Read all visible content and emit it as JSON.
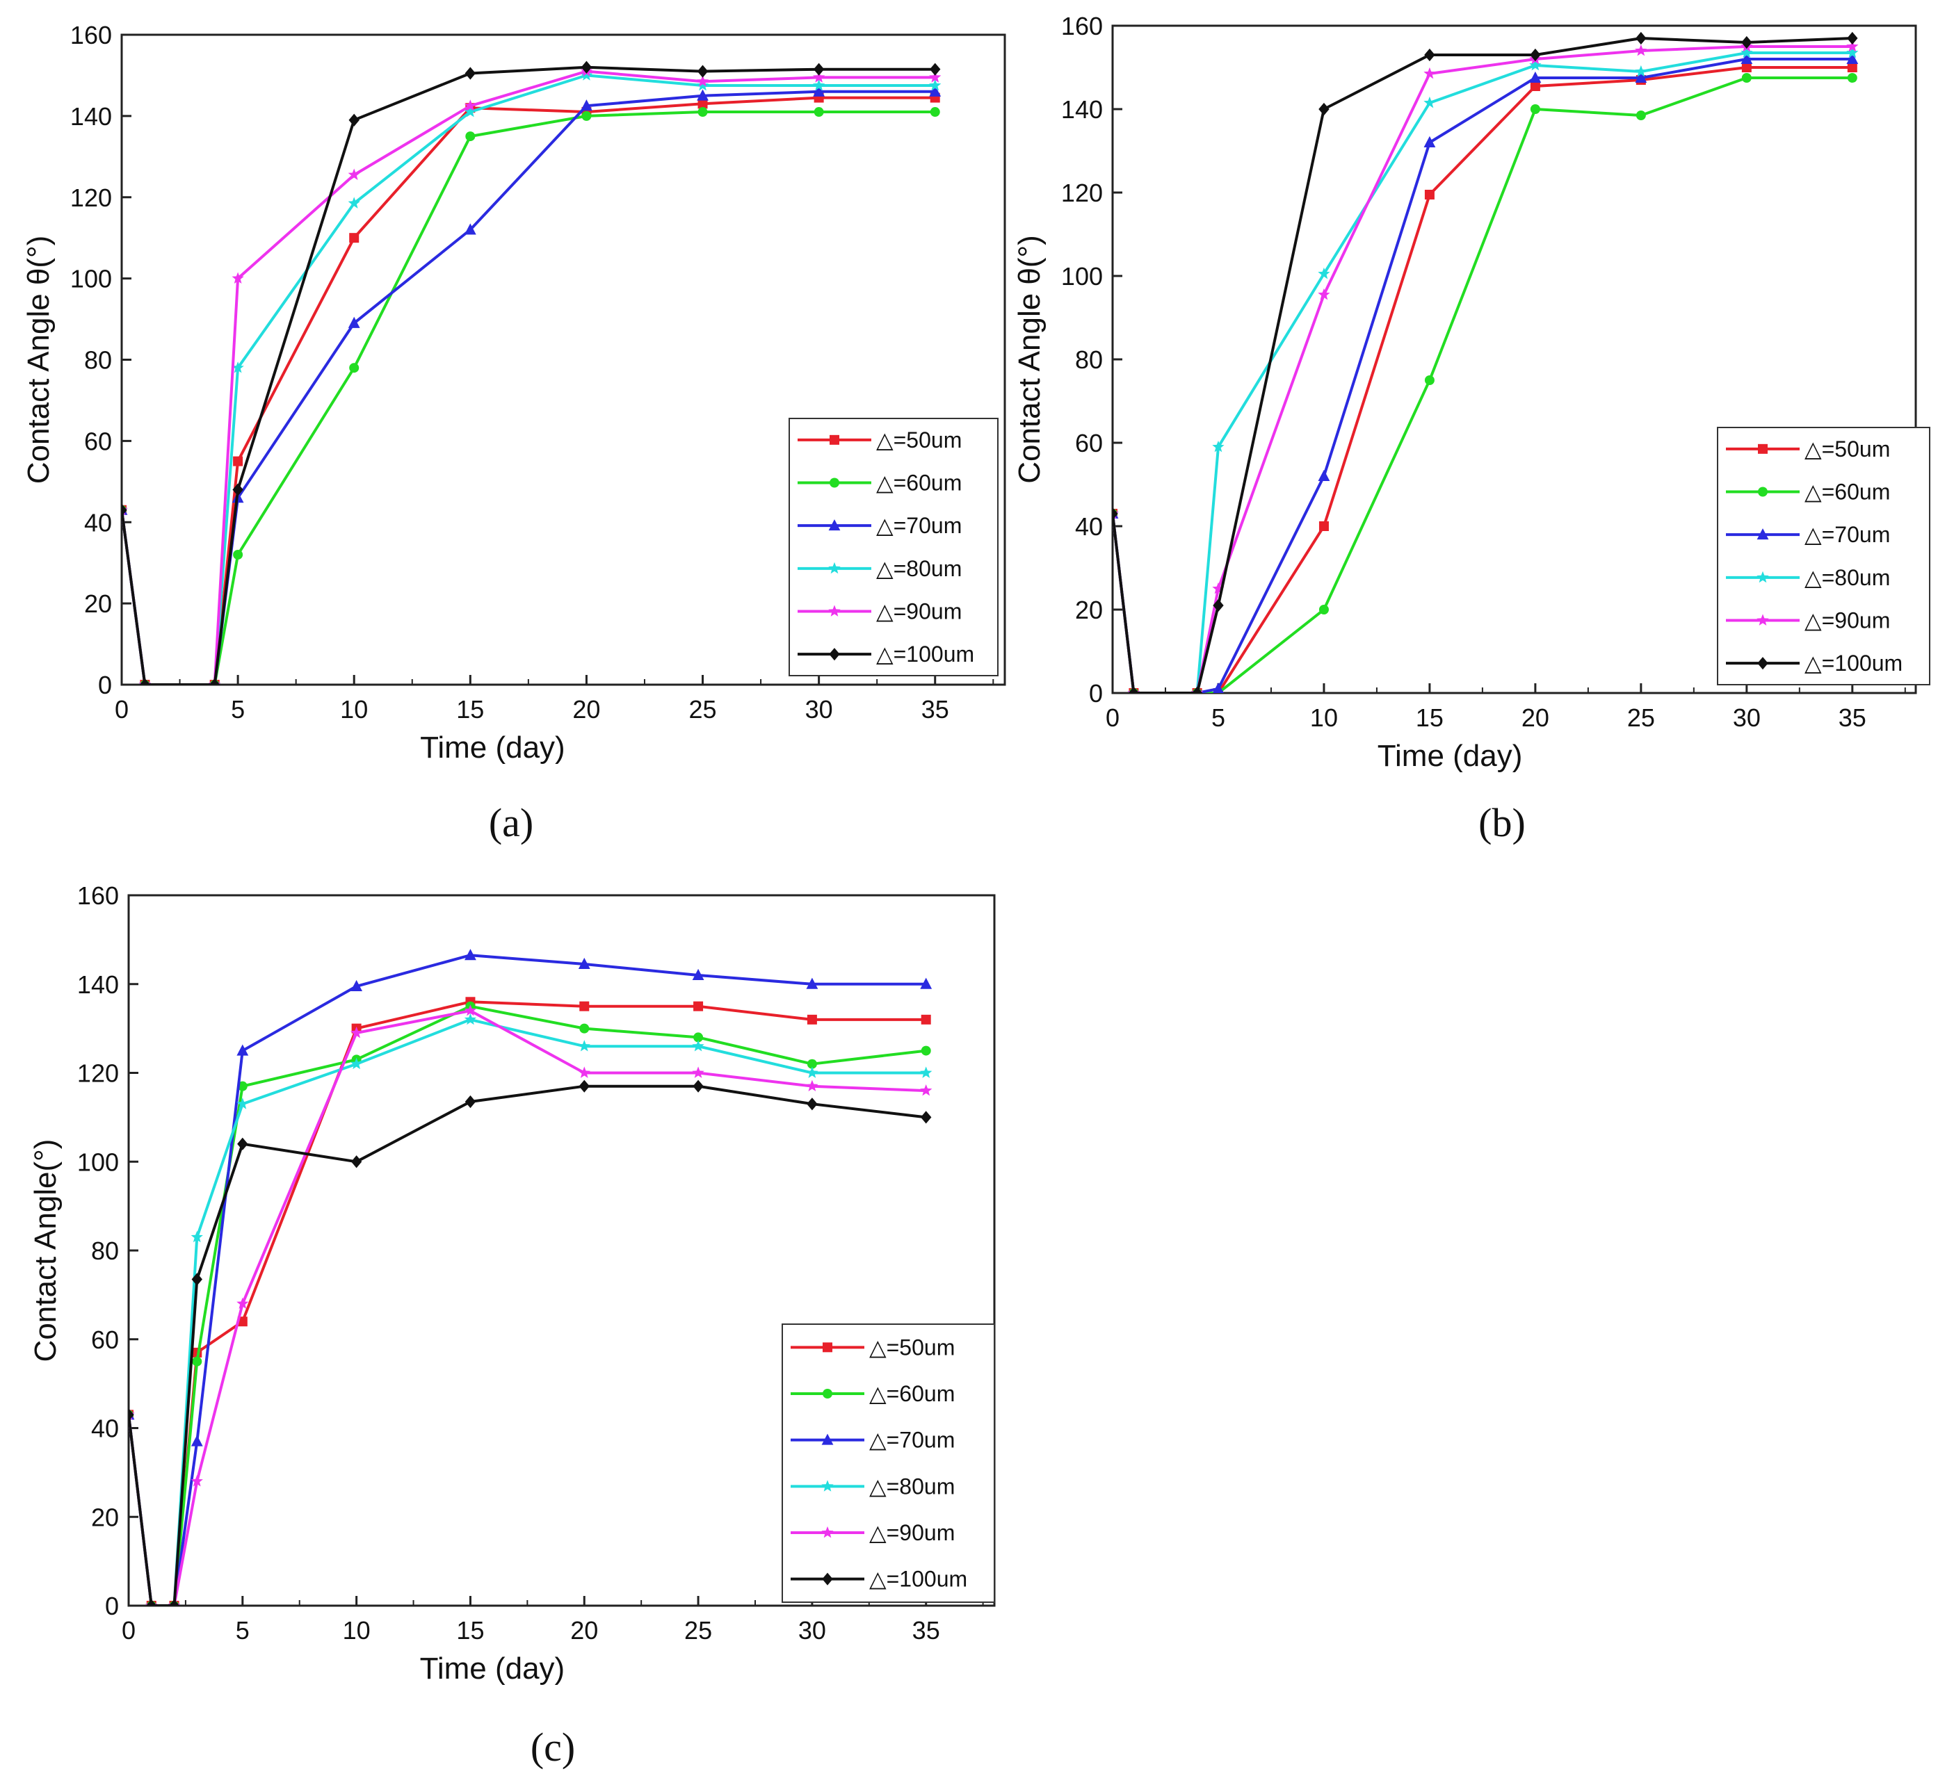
{
  "chart_data": [
    {
      "type": "line",
      "panel": "a",
      "caption": "(a)",
      "xlabel": "Time (day)",
      "ylabel": "Contact Angle θ(°)",
      "xlim": [
        0,
        38
      ],
      "ylim": [
        0,
        160
      ],
      "xticks": [
        0,
        5,
        10,
        15,
        20,
        25,
        30,
        35
      ],
      "yticks": [
        0,
        20,
        40,
        60,
        80,
        100,
        120,
        140,
        160
      ],
      "legend_position": "bottom-right",
      "series": [
        {
          "name": "△=50um",
          "color": "#e8202a",
          "marker": "square",
          "x": [
            0,
            1,
            4,
            5,
            10,
            15,
            20,
            25,
            30,
            35
          ],
          "y": [
            43,
            0,
            0,
            55,
            110,
            142,
            141,
            143,
            144.5,
            144.5
          ]
        },
        {
          "name": "△=60um",
          "color": "#22dd22",
          "marker": "circle",
          "x": [
            0,
            1,
            4,
            5,
            10,
            15,
            20,
            25,
            30,
            35
          ],
          "y": [
            43,
            0,
            0,
            32,
            78,
            135,
            140,
            141,
            141,
            141
          ]
        },
        {
          "name": "△=70um",
          "color": "#2a2ae0",
          "marker": "triangle",
          "x": [
            0,
            1,
            4,
            5,
            10,
            15,
            20,
            25,
            30,
            35
          ],
          "y": [
            43,
            0,
            0,
            46,
            89,
            112,
            142.5,
            145,
            146,
            146
          ]
        },
        {
          "name": "△=80um",
          "color": "#22dddd",
          "marker": "star",
          "x": [
            0,
            1,
            4,
            5,
            10,
            15,
            20,
            25,
            30,
            35
          ],
          "y": [
            43,
            0,
            0,
            78,
            118.5,
            141,
            150,
            147.5,
            147.5,
            147.5
          ]
        },
        {
          "name": "△=90um",
          "color": "#ee33ee",
          "marker": "star",
          "x": [
            0,
            1,
            4,
            5,
            10,
            15,
            20,
            25,
            30,
            35
          ],
          "y": [
            43,
            0,
            0,
            100,
            125.5,
            142.5,
            151,
            148.5,
            149.5,
            149.5
          ]
        },
        {
          "name": "△=100um",
          "color": "#111111",
          "marker": "diamond",
          "x": [
            0,
            1,
            4,
            5,
            10,
            15,
            20,
            25,
            30,
            35
          ],
          "y": [
            43,
            0,
            0,
            48,
            139,
            150.5,
            152,
            151,
            151.5,
            151.5
          ]
        }
      ]
    },
    {
      "type": "line",
      "panel": "b",
      "caption": "(b)",
      "xlabel": "Time (day)",
      "ylabel": "Contact Angle θ(°)",
      "xlim": [
        0,
        38
      ],
      "ylim": [
        0,
        160
      ],
      "xticks": [
        0,
        5,
        10,
        15,
        20,
        25,
        30,
        35
      ],
      "yticks": [
        0,
        20,
        40,
        60,
        80,
        100,
        120,
        140,
        160
      ],
      "legend_position": "bottom-right",
      "series": [
        {
          "name": "△=50um",
          "color": "#e8202a",
          "marker": "square",
          "x": [
            0,
            1,
            4,
            5,
            10,
            15,
            20,
            25,
            30,
            35
          ],
          "y": [
            43,
            0,
            0,
            0,
            40,
            119.5,
            145.5,
            147,
            150,
            150
          ]
        },
        {
          "name": "△=60um",
          "color": "#22dd22",
          "marker": "circle",
          "x": [
            0,
            1,
            4,
            5,
            10,
            15,
            20,
            25,
            30,
            35
          ],
          "y": [
            43,
            0,
            0,
            0,
            20,
            75,
            140,
            138.5,
            147.5,
            147.5
          ]
        },
        {
          "name": "△=70um",
          "color": "#2a2ae0",
          "marker": "triangle",
          "x": [
            0,
            1,
            4,
            5,
            10,
            15,
            20,
            25,
            30,
            35
          ],
          "y": [
            43,
            0,
            0,
            1,
            52,
            132,
            147.5,
            147.5,
            152,
            152
          ]
        },
        {
          "name": "△=80um",
          "color": "#22dddd",
          "marker": "star",
          "x": [
            0,
            1,
            4,
            5,
            10,
            15,
            20,
            25,
            30,
            35
          ],
          "y": [
            43,
            0,
            0,
            59,
            100.5,
            141.5,
            150.5,
            149,
            153.5,
            153.5
          ]
        },
        {
          "name": "△=90um",
          "color": "#ee33ee",
          "marker": "star",
          "x": [
            0,
            1,
            4,
            5,
            10,
            15,
            20,
            25,
            30,
            35
          ],
          "y": [
            43,
            0,
            0,
            25,
            95.5,
            148.5,
            152,
            154,
            155,
            155
          ]
        },
        {
          "name": "△=100um",
          "color": "#111111",
          "marker": "diamond",
          "x": [
            0,
            1,
            4,
            5,
            10,
            15,
            20,
            25,
            30,
            35
          ],
          "y": [
            43,
            0,
            0,
            21,
            140,
            153,
            153,
            157,
            156,
            157
          ]
        }
      ]
    },
    {
      "type": "line",
      "panel": "c",
      "caption": "(c)",
      "xlabel": "Time (day)",
      "ylabel": "Contact Angle(°)",
      "xlim": [
        0,
        38
      ],
      "ylim": [
        0,
        160
      ],
      "xticks": [
        0,
        5,
        10,
        15,
        20,
        25,
        30,
        35
      ],
      "yticks": [
        0,
        20,
        40,
        60,
        80,
        100,
        120,
        140,
        160
      ],
      "legend_position": "bottom-right",
      "series": [
        {
          "name": "△=50um",
          "color": "#e8202a",
          "marker": "square",
          "x": [
            0,
            1,
            2,
            3,
            5,
            10,
            15,
            20,
            25,
            30,
            35
          ],
          "y": [
            43,
            0,
            0,
            57,
            64,
            130,
            136,
            135,
            135,
            132,
            132
          ]
        },
        {
          "name": "△=60um",
          "color": "#22dd22",
          "marker": "circle",
          "x": [
            0,
            1,
            2,
            3,
            5,
            10,
            15,
            20,
            25,
            30,
            35
          ],
          "y": [
            43,
            0,
            0,
            55,
            117,
            123,
            135,
            130,
            128,
            122,
            125
          ]
        },
        {
          "name": "△=70um",
          "color": "#2a2ae0",
          "marker": "triangle",
          "x": [
            0,
            1,
            2,
            3,
            5,
            10,
            15,
            20,
            25,
            30,
            35
          ],
          "y": [
            43,
            0,
            0,
            37,
            125,
            139.5,
            146.5,
            144.5,
            142,
            140,
            140
          ]
        },
        {
          "name": "△=80um",
          "color": "#22dddd",
          "marker": "star",
          "x": [
            0,
            1,
            2,
            3,
            5,
            10,
            15,
            20,
            25,
            30,
            35
          ],
          "y": [
            43,
            0,
            0,
            83,
            113,
            122,
            132,
            126,
            126,
            120,
            120
          ]
        },
        {
          "name": "△=90um",
          "color": "#ee33ee",
          "marker": "star",
          "x": [
            0,
            1,
            2,
            3,
            5,
            10,
            15,
            20,
            25,
            30,
            35
          ],
          "y": [
            43,
            0,
            0,
            28,
            68,
            129,
            134,
            120,
            120,
            117,
            116
          ]
        },
        {
          "name": "△=100um",
          "color": "#111111",
          "marker": "diamond",
          "x": [
            0,
            1,
            2,
            3,
            5,
            10,
            15,
            20,
            25,
            30,
            35
          ],
          "y": [
            43,
            0,
            0,
            73.5,
            104,
            100,
            113.5,
            117,
            117,
            113,
            110
          ]
        }
      ]
    }
  ]
}
